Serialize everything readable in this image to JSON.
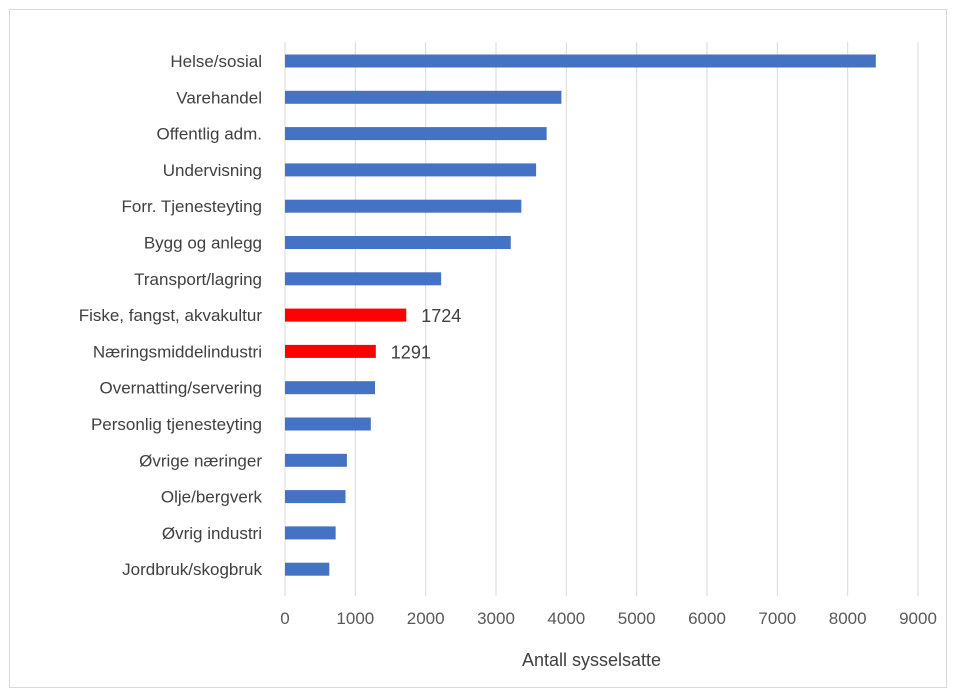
{
  "chart_data": {
    "type": "bar",
    "orientation": "horizontal",
    "categories": [
      "Helse/sosial",
      "Varehandel",
      "Offentlig adm.",
      "Undervisning",
      "Forr. Tjenesteyting",
      "Bygg og anlegg",
      "Transport/lagring",
      "Fiske, fangst, akvakultur",
      "Næringsmiddelindustri",
      "Overnatting/servering",
      "Personlig tjenesteyting",
      "Øvrige næringer",
      "Olje/bergverk",
      "Øvrig industri",
      "Jordbruk/skogbruk"
    ],
    "values": [
      8400,
      3930,
      3720,
      3570,
      3360,
      3210,
      2220,
      1724,
      1291,
      1280,
      1220,
      880,
      860,
      720,
      630
    ],
    "highlighted": [
      false,
      false,
      false,
      false,
      false,
      false,
      false,
      true,
      true,
      false,
      false,
      false,
      false,
      false,
      false
    ],
    "data_labels": [
      "",
      "",
      "",
      "",
      "",
      "",
      "",
      "1724",
      "1291",
      "",
      "",
      "",
      "",
      "",
      ""
    ],
    "xticks": [
      "0",
      "1000",
      "2000",
      "3000",
      "4000",
      "5000",
      "6000",
      "7000",
      "8000",
      "9000"
    ],
    "xlim": [
      0,
      9000
    ],
    "xlabel": "Antall sysselsatte",
    "ylabel": "",
    "title": "",
    "grid": "vertical",
    "legend": "none",
    "colors": {
      "bar": "#4472c4",
      "highlight": "#ff0000",
      "grid": "#d9d9d9"
    }
  }
}
